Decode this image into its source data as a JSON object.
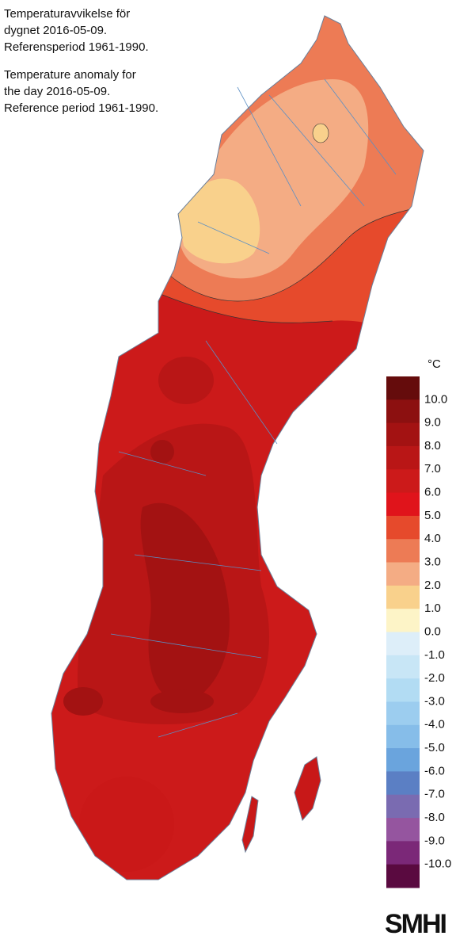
{
  "header": {
    "lines_sv": [
      "Temperaturavvikelse för",
      "dygnet 2016-05-09.",
      "Referensperiod 1961-1990."
    ],
    "lines_en": [
      "Temperature anomaly for",
      "the day 2016-05-09.",
      "Reference period 1961-1990."
    ]
  },
  "legend": {
    "unit": "°C",
    "labels": [
      "10.0",
      "9.0",
      "8.0",
      "7.0",
      "6.0",
      "5.0",
      "4.0",
      "3.0",
      "2.0",
      "1.0",
      "0.0",
      "-1.0",
      "-2.0",
      "-3.0",
      "-4.0",
      "-5.0",
      "-6.0",
      "-7.0",
      "-8.0",
      "-9.0",
      "-10.0"
    ],
    "colors": [
      "#650c0c",
      "#8c1010",
      "#a31212",
      "#b91616",
      "#cc1a1a",
      "#e0141b",
      "#e64a2c",
      "#ed7b55",
      "#f4ac84",
      "#f9d18c",
      "#fdf4c7",
      "#ddeef9",
      "#c8e6f6",
      "#b2dcf3",
      "#9ccdef",
      "#86bde9",
      "#6aa4dd",
      "#5b7fc4",
      "#7a6bb1",
      "#95559f",
      "#7b2878",
      "#5a0a40"
    ]
  },
  "logo": "SMHI"
}
